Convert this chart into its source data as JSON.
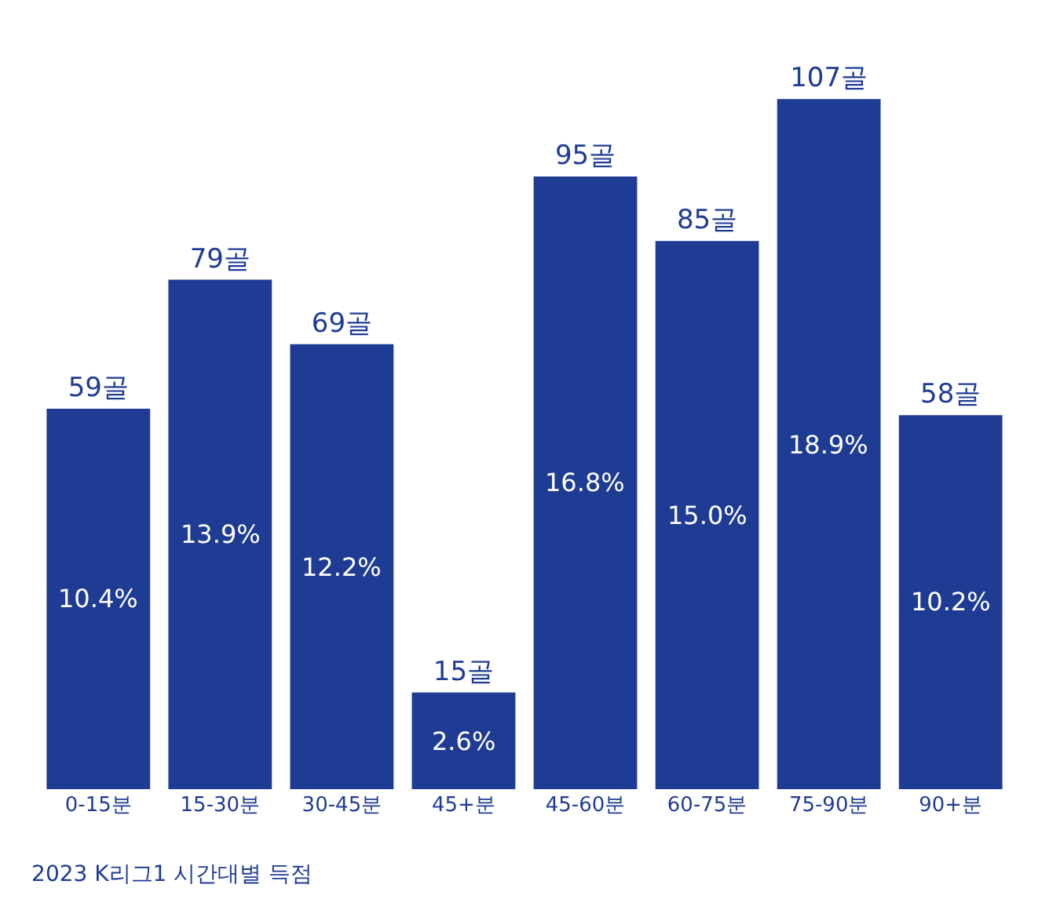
{
  "chart_data": {
    "type": "bar",
    "title": "2023 K리그1 시간대별 득점",
    "categories": [
      "0-15분",
      "15-30분",
      "30-45분",
      "45+분",
      "45-60분",
      "60-75분",
      "75-90분",
      "90+분"
    ],
    "values": [
      59,
      79,
      69,
      15,
      95,
      85,
      107,
      58
    ],
    "value_labels": [
      "59골",
      "79골",
      "69골",
      "15골",
      "95골",
      "85골",
      "107골",
      "58골"
    ],
    "color": "#1f3c94",
    "annotations": [
      "10.4%",
      "13.9%",
      "12.2%",
      "2.6%",
      "16.8%",
      "15.0%",
      "18.9%",
      "10.2%"
    ],
    "legend": false
  }
}
